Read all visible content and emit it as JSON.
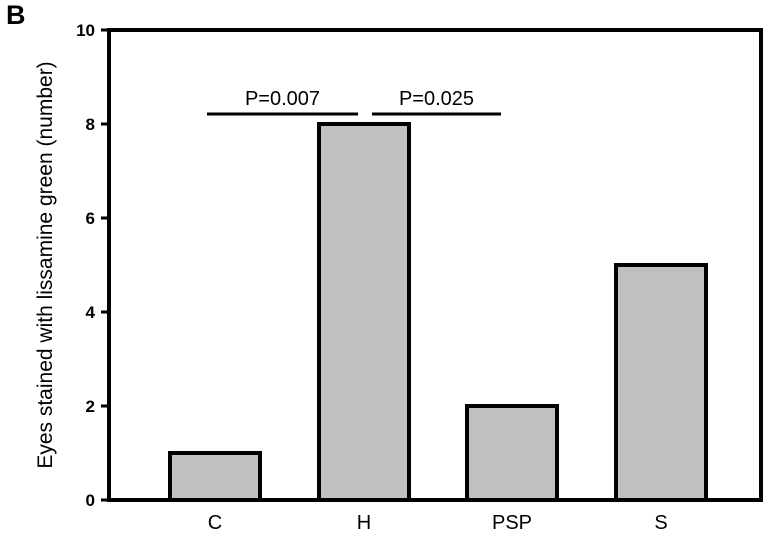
{
  "panel_label": "B",
  "colors": {
    "bar_fill": "#c0c0c0",
    "bar_stroke": "#000000",
    "axis": "#000000",
    "background": "#ffffff"
  },
  "chart_data": {
    "type": "bar",
    "categories": [
      "C",
      "H",
      "PSP",
      "S"
    ],
    "values": [
      1,
      8,
      2,
      5
    ],
    "title": "",
    "xlabel": "",
    "ylabel": "Eyes stained with lissamine green (number)",
    "ylim": [
      0,
      10
    ],
    "yticks": [
      0,
      2,
      4,
      6,
      8,
      10
    ],
    "grid": false,
    "legend": "none",
    "annotations": [
      {
        "text": "P=0.007",
        "from": "C",
        "to": "H",
        "y": 8.25
      },
      {
        "text": "P=0.025",
        "from": "H",
        "to": "PSP",
        "y": 8.25
      }
    ]
  }
}
